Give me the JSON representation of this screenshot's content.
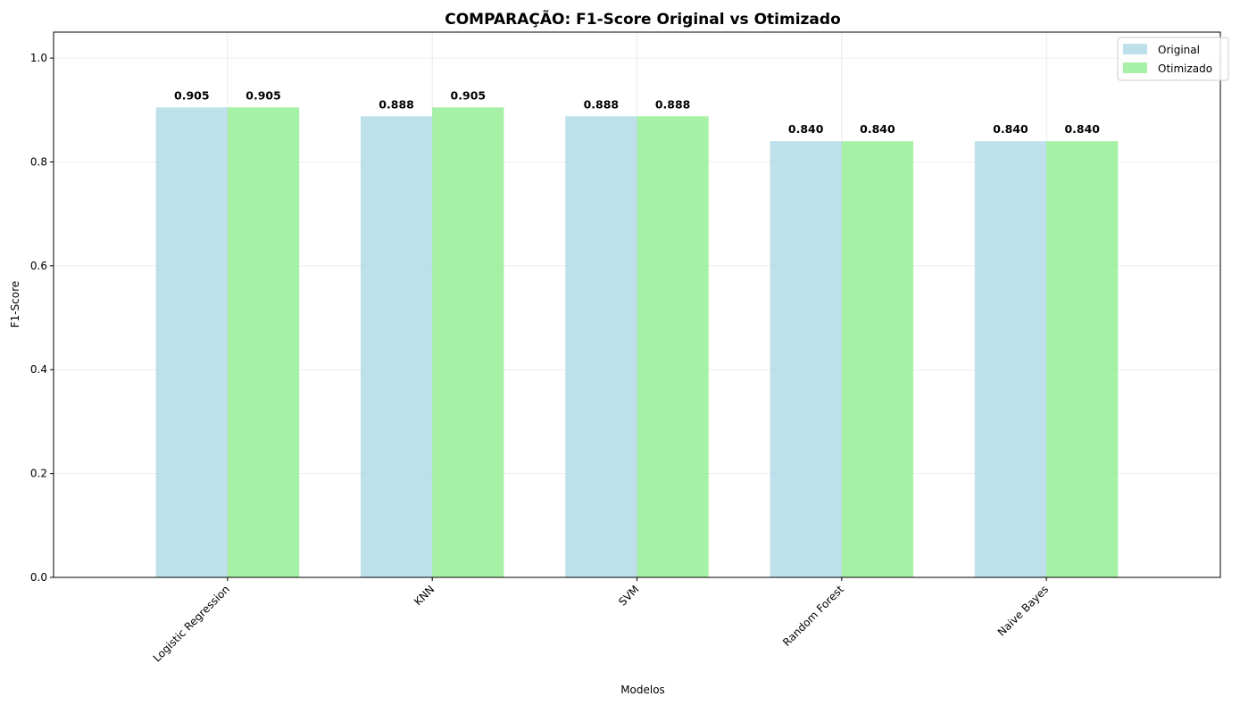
{
  "chart_data": {
    "type": "bar",
    "title": "COMPARAÇÃO: F1-Score Original vs Otimizado",
    "xlabel": "Modelos",
    "ylabel": "F1-Score",
    "ylim": [
      0,
      1.05
    ],
    "yticks": [
      "0.0",
      "0.2",
      "0.4",
      "0.6",
      "0.8",
      "1.0"
    ],
    "grid": true,
    "legend_position": "top-right",
    "categories": [
      "Logistic Regression",
      "KNN",
      "SVM",
      "Random Forest",
      "Naive Bayes"
    ],
    "series": [
      {
        "name": "Original",
        "color": "#add8e6",
        "values": [
          0.905,
          0.888,
          0.888,
          0.84,
          0.84
        ],
        "labels": [
          "0.905",
          "0.888",
          "0.888",
          "0.840",
          "0.840"
        ]
      },
      {
        "name": "Otimizado",
        "color": "#90ee90",
        "values": [
          0.905,
          0.905,
          0.888,
          0.84,
          0.84
        ],
        "labels": [
          "0.905",
          "0.905",
          "0.888",
          "0.840",
          "0.840"
        ]
      }
    ]
  }
}
